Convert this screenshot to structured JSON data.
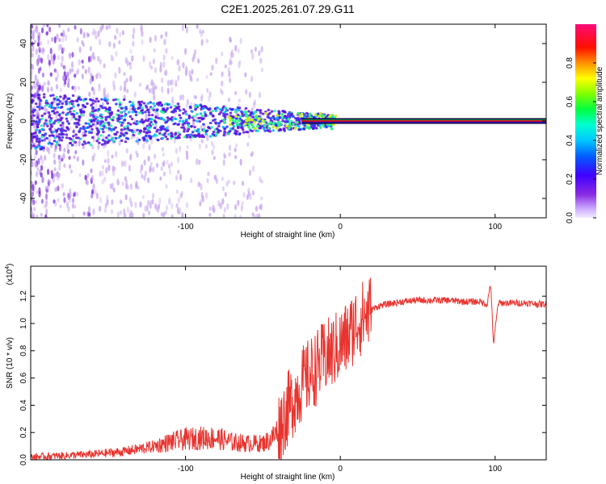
{
  "title": "C2E1.2025.261.07.29.G11",
  "chart_data": [
    {
      "type": "heatmap",
      "name": "spectrogram",
      "xlabel": "Height of straight line (km)",
      "ylabel": "Frequency (Hz)",
      "xlim": [
        -200,
        133
      ],
      "ylim": [
        -50,
        50
      ],
      "xticks": [
        "-100",
        "0",
        "100"
      ],
      "yticks": [
        "-40",
        "-20",
        "0",
        "20",
        "40"
      ],
      "colorbar": {
        "label": "Normalized spectral amplitude",
        "range": [
          0,
          1
        ],
        "ticks": [
          "0.0",
          "0.2",
          "0.4",
          "0.6",
          "0.8"
        ],
        "colors": [
          "#e6e6fa",
          "#9b30ff",
          "#6a0dad",
          "#0000ff",
          "#00bfff",
          "#00ffff",
          "#00ff66",
          "#66ff00",
          "#ffff00",
          "#ffa500",
          "#ff0000",
          "#ff1493"
        ]
      },
      "signal_track": {
        "frequency_hz": 0,
        "x_start_km": -200,
        "x_end_km": 133,
        "strong_from_km": -25
      },
      "accent_colors": {
        "frame_line": "#000000",
        "scatter_light": "#c8a8f0",
        "scatter_dark": "#7a2be0",
        "core": "#ff0000",
        "core_edge": "#00c800"
      }
    },
    {
      "type": "line",
      "name": "snr",
      "xlabel": "Height of straight line (km)",
      "ylabel": "SNR (10 * v/v)",
      "y_multiplier": "(x10",
      "y_multiplier_exp": "4",
      "y_multiplier_close": ")",
      "xlim": [
        -200,
        133
      ],
      "ylim": [
        0,
        1.42
      ],
      "xticks": [
        "-100",
        "0",
        "100"
      ],
      "yticks": [
        "0.0",
        "0.2",
        "0.4",
        "0.6",
        "0.8",
        "1.0",
        "1.2"
      ],
      "color": "#e8342f",
      "series": [
        {
          "name": "SNR",
          "x": [
            -200,
            -180,
            -160,
            -140,
            -120,
            -110,
            -100,
            -90,
            -80,
            -70,
            -60,
            -50,
            -45,
            -40,
            -35,
            -30,
            -25,
            -20,
            -15,
            -10,
            -5,
            0,
            5,
            10,
            15,
            20,
            25,
            30,
            40,
            50,
            60,
            70,
            80,
            90,
            95,
            97,
            99,
            102,
            110,
            120,
            133
          ],
          "y": [
            0.02,
            0.03,
            0.04,
            0.06,
            0.1,
            0.13,
            0.15,
            0.16,
            0.16,
            0.13,
            0.12,
            0.12,
            0.15,
            0.22,
            0.35,
            0.45,
            0.55,
            0.62,
            0.68,
            0.75,
            0.79,
            0.84,
            0.9,
            1.0,
            1.05,
            1.1,
            1.13,
            1.14,
            1.16,
            1.17,
            1.17,
            1.17,
            1.16,
            1.16,
            1.14,
            1.3,
            0.85,
            1.15,
            1.15,
            1.15,
            1.14
          ]
        }
      ]
    }
  ]
}
